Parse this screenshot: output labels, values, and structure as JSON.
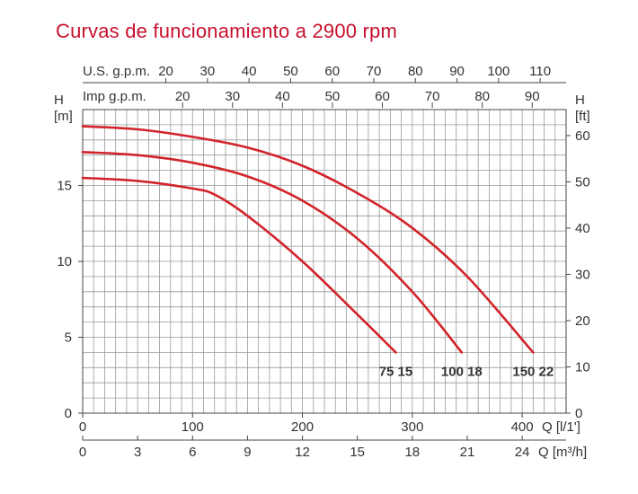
{
  "title": "Curvas de funcionamiento a 2900 rpm",
  "colors": {
    "title": "#c8102e",
    "curve": "#d2232a",
    "grid": "#9a9a9a",
    "axis": "#444444"
  },
  "chart_data": {
    "type": "line",
    "grid": true,
    "title": "Curvas de funcionamiento a 2900 rpm",
    "x_primary": {
      "label": "Q [l/1']",
      "range": [
        0,
        440
      ],
      "ticks": [
        0,
        100,
        200,
        300,
        400
      ]
    },
    "x_m3h": {
      "label": "Q [m³/h]",
      "ticks": [
        0,
        3,
        6,
        9,
        12,
        15,
        18,
        21,
        24
      ]
    },
    "x_usgpm": {
      "label": "U.S. g.p.m.",
      "ticks": [
        20,
        30,
        40,
        50,
        60,
        70,
        80,
        90,
        100,
        110
      ]
    },
    "x_impgpm": {
      "label": "Imp g.p.m.",
      "ticks": [
        20,
        30,
        40,
        50,
        60,
        70,
        80,
        90
      ]
    },
    "y_left": {
      "label_top": "H",
      "label_unit": "[m]",
      "range": [
        0,
        20
      ],
      "ticks": [
        0,
        5,
        10,
        15
      ]
    },
    "y_right": {
      "label_top": "H",
      "label_unit": "[ft]",
      "ticks": [
        0,
        10,
        20,
        30,
        40,
        50,
        60
      ]
    },
    "series": [
      {
        "name": "75 15",
        "x": [
          0,
          50,
          100,
          120,
          150,
          200,
          250,
          285
        ],
        "y": [
          15.5,
          15.3,
          14.8,
          14.4,
          13.0,
          10.0,
          6.5,
          4.0
        ]
      },
      {
        "name": "100 18",
        "x": [
          0,
          50,
          100,
          150,
          200,
          250,
          300,
          345
        ],
        "y": [
          17.2,
          17.0,
          16.5,
          15.6,
          14.0,
          11.5,
          8.0,
          4.0
        ]
      },
      {
        "name": "150 22",
        "x": [
          0,
          50,
          100,
          150,
          200,
          250,
          300,
          350,
          410
        ],
        "y": [
          18.9,
          18.7,
          18.2,
          17.5,
          16.3,
          14.5,
          12.2,
          9.0,
          4.0
        ]
      }
    ]
  }
}
